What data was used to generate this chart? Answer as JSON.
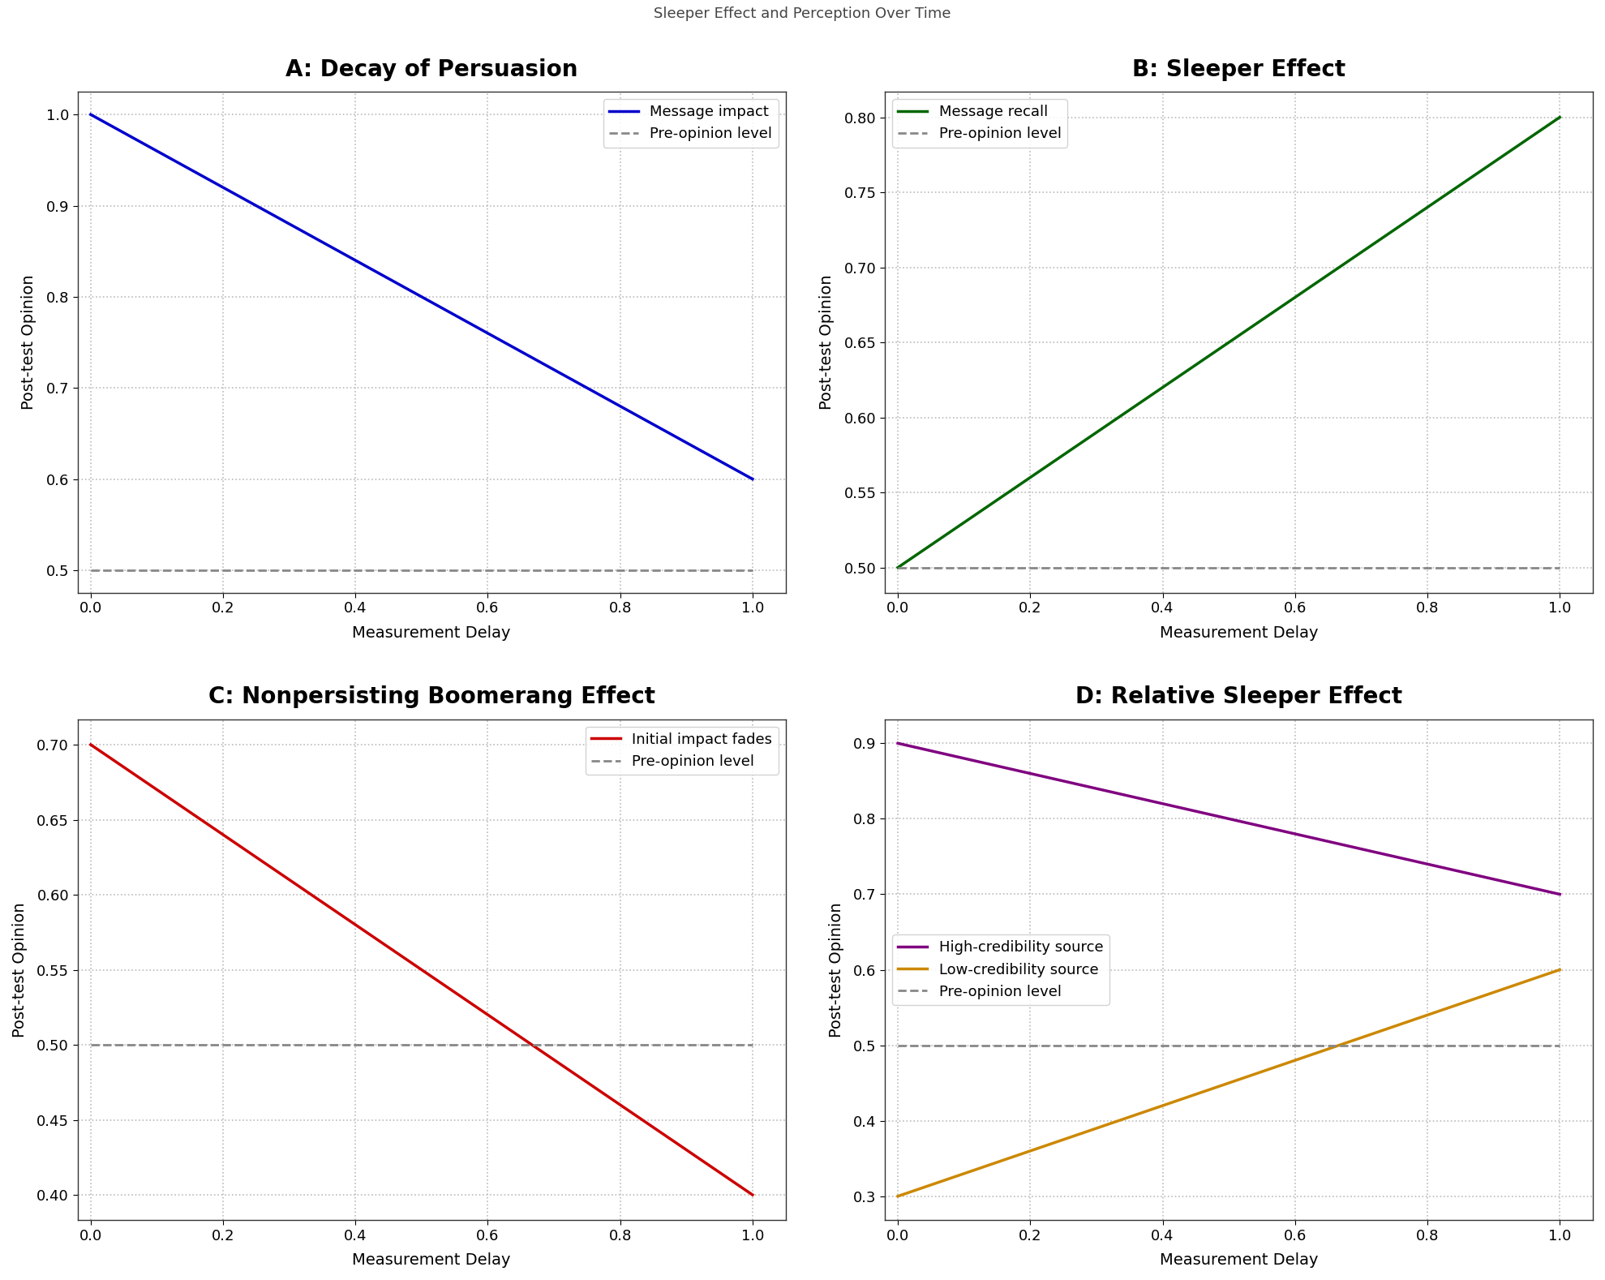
{
  "title": "Sleeper Effect and Perception Over Time",
  "title_fontsize": 13,
  "title_color": "#444444",
  "subplots": [
    {
      "label": "A: Decay of Persuasion",
      "lines": [
        {
          "x": [
            0.0,
            1.0
          ],
          "y": [
            1.0,
            0.6
          ],
          "color": "#0000CC",
          "lw": 2.5,
          "ls": "-",
          "legend": "Message impact"
        },
        {
          "x": [
            0.0,
            1.0
          ],
          "y": [
            0.5,
            0.5
          ],
          "color": "#888888",
          "lw": 2.0,
          "ls": "--",
          "legend": "Pre-opinion level"
        }
      ],
      "ylim": [
        0.475,
        1.025
      ],
      "yticks": [
        0.5,
        0.6,
        0.7,
        0.8,
        0.9,
        1.0
      ],
      "xlabel": "Measurement Delay",
      "ylabel": "Post-test Opinion",
      "legend_loc": "upper right"
    },
    {
      "label": "B: Sleeper Effect",
      "lines": [
        {
          "x": [
            0.0,
            1.0
          ],
          "y": [
            0.5,
            0.8
          ],
          "color": "#006600",
          "lw": 2.5,
          "ls": "-",
          "legend": "Message recall"
        },
        {
          "x": [
            0.0,
            1.0
          ],
          "y": [
            0.5,
            0.5
          ],
          "color": "#888888",
          "lw": 2.0,
          "ls": "--",
          "legend": "Pre-opinion level"
        }
      ],
      "ylim": [
        0.483,
        0.817
      ],
      "yticks": [
        0.5,
        0.55,
        0.6,
        0.65,
        0.7,
        0.75,
        0.8
      ],
      "xlabel": "Measurement Delay",
      "ylabel": "Post-test Opinion",
      "legend_loc": "upper left"
    },
    {
      "label": "C: Nonpersisting Boomerang Effect",
      "lines": [
        {
          "x": [
            0.0,
            1.0
          ],
          "y": [
            0.7,
            0.4
          ],
          "color": "#CC0000",
          "lw": 2.5,
          "ls": "-",
          "legend": "Initial impact fades"
        },
        {
          "x": [
            0.0,
            1.0
          ],
          "y": [
            0.5,
            0.5
          ],
          "color": "#888888",
          "lw": 2.0,
          "ls": "--",
          "legend": "Pre-opinion level"
        }
      ],
      "ylim": [
        0.383,
        0.717
      ],
      "yticks": [
        0.4,
        0.45,
        0.5,
        0.55,
        0.6,
        0.65,
        0.7
      ],
      "xlabel": "Measurement Delay",
      "ylabel": "Post-test Opinion",
      "legend_loc": "upper right"
    },
    {
      "label": "D: Relative Sleeper Effect",
      "lines": [
        {
          "x": [
            0.0,
            1.0
          ],
          "y": [
            0.9,
            0.7
          ],
          "color": "#800080",
          "lw": 2.5,
          "ls": "-",
          "legend": "High-credibility source"
        },
        {
          "x": [
            0.0,
            1.0
          ],
          "y": [
            0.3,
            0.6
          ],
          "color": "#CC8800",
          "lw": 2.5,
          "ls": "-",
          "legend": "Low-credibility source"
        },
        {
          "x": [
            0.0,
            1.0
          ],
          "y": [
            0.5,
            0.5
          ],
          "color": "#888888",
          "lw": 2.0,
          "ls": "--",
          "legend": "Pre-opinion level"
        }
      ],
      "ylim": [
        0.268,
        0.932
      ],
      "yticks": [
        0.3,
        0.4,
        0.5,
        0.6,
        0.7,
        0.8,
        0.9
      ],
      "xlabel": "Measurement Delay",
      "ylabel": "Post-test Opinion",
      "legend_loc": "center left"
    }
  ],
  "xlim": [
    -0.02,
    1.05
  ],
  "xticks": [
    0.0,
    0.2,
    0.4,
    0.6,
    0.8,
    1.0
  ],
  "grid_color": "#bbbbbb",
  "grid_ls": ":",
  "grid_lw": 1.2,
  "bg_color": "#ffffff",
  "fig_bg_color": "#ffffff",
  "legend_fontsize": 13,
  "axis_label_fontsize": 14,
  "tick_fontsize": 13,
  "subplot_title_fontsize": 20
}
